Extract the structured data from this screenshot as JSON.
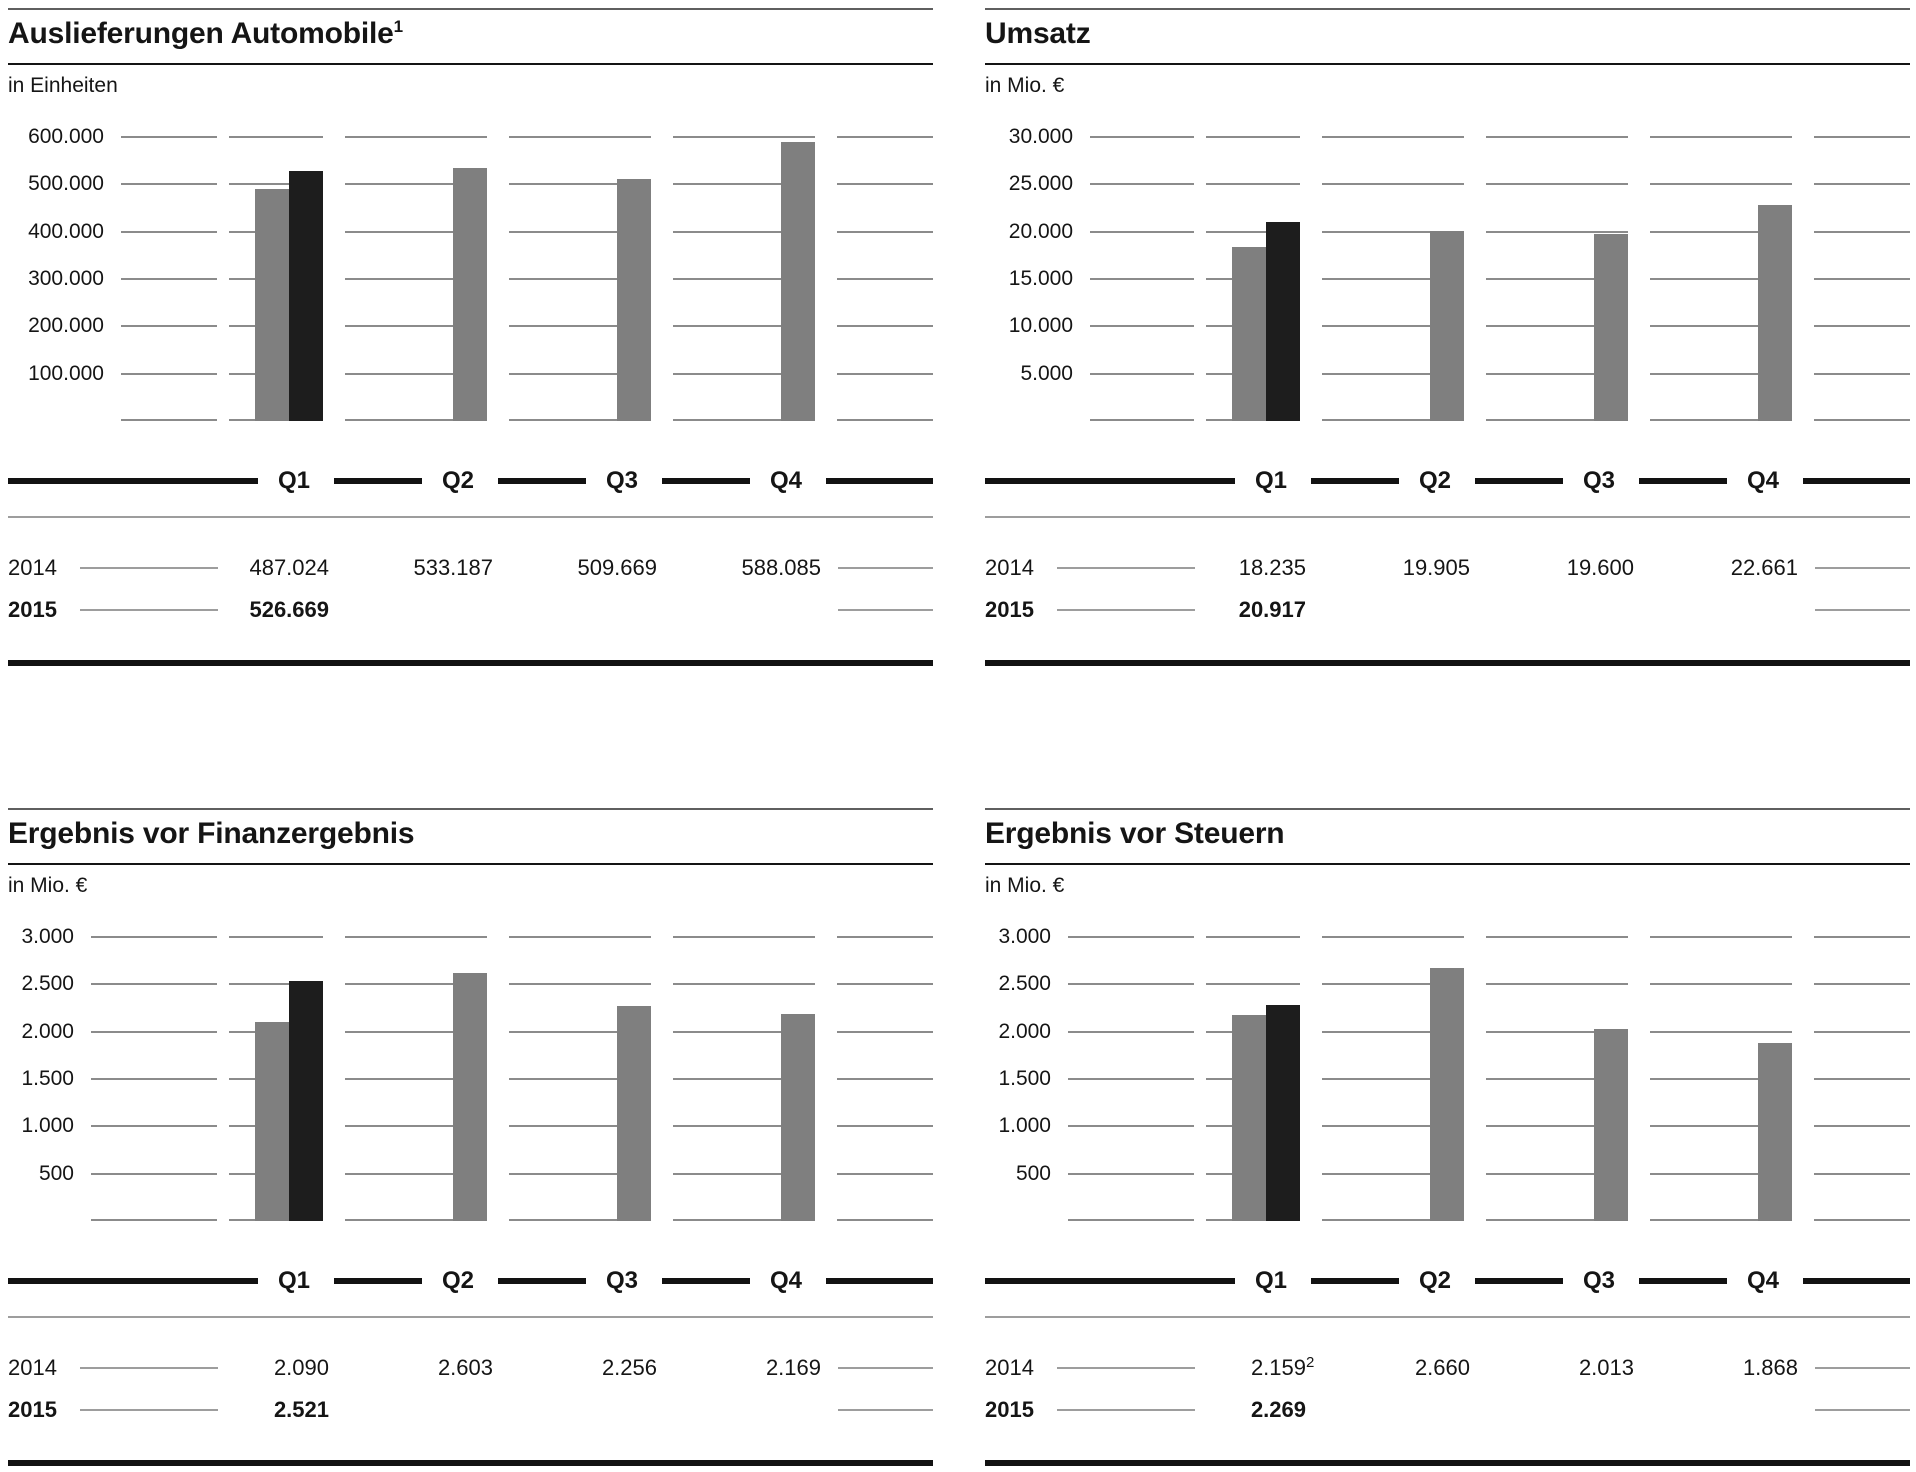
{
  "quarters": [
    "Q1",
    "Q2",
    "Q3",
    "Q4"
  ],
  "colors": {
    "bar_2014": "#7f7f7f",
    "bar_2015": "#1d1d1d",
    "gridline": "#8b8b8b",
    "rule_dark": "#121212",
    "rule_light": "#9d9d9d",
    "pane_top_rule": "#5f5f5f",
    "text": "#151515"
  },
  "chart_data": [
    {
      "type": "bar",
      "title": "Auslieferungen Automobile",
      "title_footnote": "1",
      "unit_label": "in Einheiten",
      "categories": [
        "Q1",
        "Q2",
        "Q3",
        "Q4"
      ],
      "y_ticks": [
        "600.000",
        "500.000",
        "400.000",
        "300.000",
        "200.000",
        "100.000"
      ],
      "ylim": [
        0,
        600000
      ],
      "grid": "horizontal-dashed",
      "legend": "table-below",
      "label_col_width": 96,
      "value_footnote": null,
      "series": [
        {
          "name": "2014",
          "color": "#7f7f7f",
          "values": [
            487024,
            533187,
            509669,
            588085
          ],
          "display": [
            "487.024",
            "533.187",
            "509.669",
            "588.085"
          ]
        },
        {
          "name": "2015",
          "color": "#1d1d1d",
          "values": [
            526669
          ],
          "display": [
            "526.669"
          ]
        }
      ]
    },
    {
      "type": "bar",
      "title": "Umsatz",
      "title_footnote": "",
      "unit_label": "in Mio. €",
      "categories": [
        "Q1",
        "Q2",
        "Q3",
        "Q4"
      ],
      "y_ticks": [
        "30.000",
        "25.000",
        "20.000",
        "15.000",
        "10.000",
        "5.000"
      ],
      "ylim": [
        0,
        30000
      ],
      "grid": "horizontal-dashed",
      "legend": "table-below",
      "label_col_width": 88,
      "value_footnote": null,
      "series": [
        {
          "name": "2014",
          "color": "#7f7f7f",
          "values": [
            18235,
            19905,
            19600,
            22661
          ],
          "display": [
            "18.235",
            "19.905",
            "19.600",
            "22.661"
          ]
        },
        {
          "name": "2015",
          "color": "#1d1d1d",
          "values": [
            20917
          ],
          "display": [
            "20.917"
          ]
        }
      ]
    },
    {
      "type": "bar",
      "title": "Ergebnis vor Finanzergebnis",
      "title_footnote": "",
      "unit_label": "in Mio. €",
      "categories": [
        "Q1",
        "Q2",
        "Q3",
        "Q4"
      ],
      "y_ticks": [
        "3.000",
        "2.500",
        "2.000",
        "1.500",
        "1.000",
        "500"
      ],
      "ylim": [
        0,
        3000
      ],
      "grid": "horizontal-dashed",
      "legend": "table-below",
      "label_col_width": 66,
      "value_footnote": null,
      "series": [
        {
          "name": "2014",
          "color": "#7f7f7f",
          "values": [
            2090,
            2603,
            2256,
            2169
          ],
          "display": [
            "2.090",
            "2.603",
            "2.256",
            "2.169"
          ]
        },
        {
          "name": "2015",
          "color": "#1d1d1d",
          "values": [
            2521
          ],
          "display": [
            "2.521"
          ]
        }
      ]
    },
    {
      "type": "bar",
      "title": "Ergebnis vor Steuern",
      "title_footnote": "",
      "unit_label": "in Mio. €",
      "categories": [
        "Q1",
        "Q2",
        "Q3",
        "Q4"
      ],
      "y_ticks": [
        "3.000",
        "2.500",
        "2.000",
        "1.500",
        "1.000",
        "500"
      ],
      "ylim": [
        0,
        3000
      ],
      "grid": "horizontal-dashed",
      "legend": "table-below",
      "label_col_width": 66,
      "value_footnote": {
        "series": "2014",
        "index": 0,
        "mark": "2"
      },
      "series": [
        {
          "name": "2014",
          "color": "#7f7f7f",
          "values": [
            2159,
            2660,
            2013,
            1868
          ],
          "display": [
            "2.159",
            "2.660",
            "2.013",
            "1.868"
          ]
        },
        {
          "name": "2015",
          "color": "#1d1d1d",
          "values": [
            2269
          ],
          "display": [
            "2.269"
          ]
        }
      ]
    }
  ]
}
